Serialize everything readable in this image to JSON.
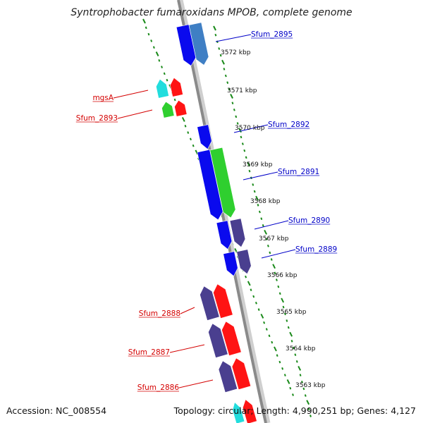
{
  "header": {
    "title": "Syntrophobacter fumaroxidans MPOB, complete genome"
  },
  "footer": {
    "accession": "Accession: NC_008554",
    "stats": "Topology: circular; Length: 4,990,251 bp; Genes: 4,127"
  },
  "colors": {
    "backbone": "#8a8a8a",
    "tick": "#1a8a1a",
    "forward_label": "#0000c8",
    "reverse_label": "#d40000",
    "blue": "#0a0aee",
    "steel": "#3f7fc4",
    "purple": "#4a3f8f",
    "red": "#ff1414",
    "green": "#2fcf2f",
    "cyan": "#22dddd"
  },
  "scale_labels": [
    "3572 kbp",
    "3571 kbp",
    "3570 kbp",
    "3569 kbp",
    "3568 kbp",
    "3567 kbp",
    "3566 kbp",
    "3565 kbp",
    "3564 kbp",
    "3563 kbp"
  ],
  "gene_labels": [
    {
      "text": "Sfum_2895",
      "strand": "forward"
    },
    {
      "text": "mgsA",
      "strand": "reverse"
    },
    {
      "text": "Sfum_2893",
      "strand": "reverse"
    },
    {
      "text": "Sfum_2892",
      "strand": "forward"
    },
    {
      "text": "Sfum_2891",
      "strand": "forward"
    },
    {
      "text": "Sfum_2890",
      "strand": "forward"
    },
    {
      "text": "Sfum_2889",
      "strand": "forward"
    },
    {
      "text": "Sfum_2888",
      "strand": "reverse"
    },
    {
      "text": "Sfum_2887",
      "strand": "reverse"
    },
    {
      "text": "Sfum_2886",
      "strand": "reverse"
    }
  ],
  "features": [
    {
      "color": "blue",
      "direction": "down"
    },
    {
      "color": "steel",
      "direction": "down"
    },
    {
      "color": "cyan",
      "direction": "up"
    },
    {
      "color": "red",
      "direction": "up"
    },
    {
      "color": "green",
      "direction": "up"
    },
    {
      "color": "red",
      "direction": "up"
    },
    {
      "color": "blue",
      "direction": "down"
    },
    {
      "color": "blue",
      "direction": "down"
    },
    {
      "color": "green",
      "direction": "down"
    },
    {
      "color": "blue",
      "direction": "down"
    },
    {
      "color": "purple",
      "direction": "down"
    },
    {
      "color": "blue",
      "direction": "down"
    },
    {
      "color": "purple",
      "direction": "down"
    },
    {
      "color": "purple",
      "direction": "up"
    },
    {
      "color": "red",
      "direction": "up"
    },
    {
      "color": "purple",
      "direction": "up"
    },
    {
      "color": "red",
      "direction": "up"
    },
    {
      "color": "purple",
      "direction": "up"
    },
    {
      "color": "red",
      "direction": "up"
    },
    {
      "color": "cyan",
      "direction": "up"
    },
    {
      "color": "red",
      "direction": "up"
    }
  ]
}
